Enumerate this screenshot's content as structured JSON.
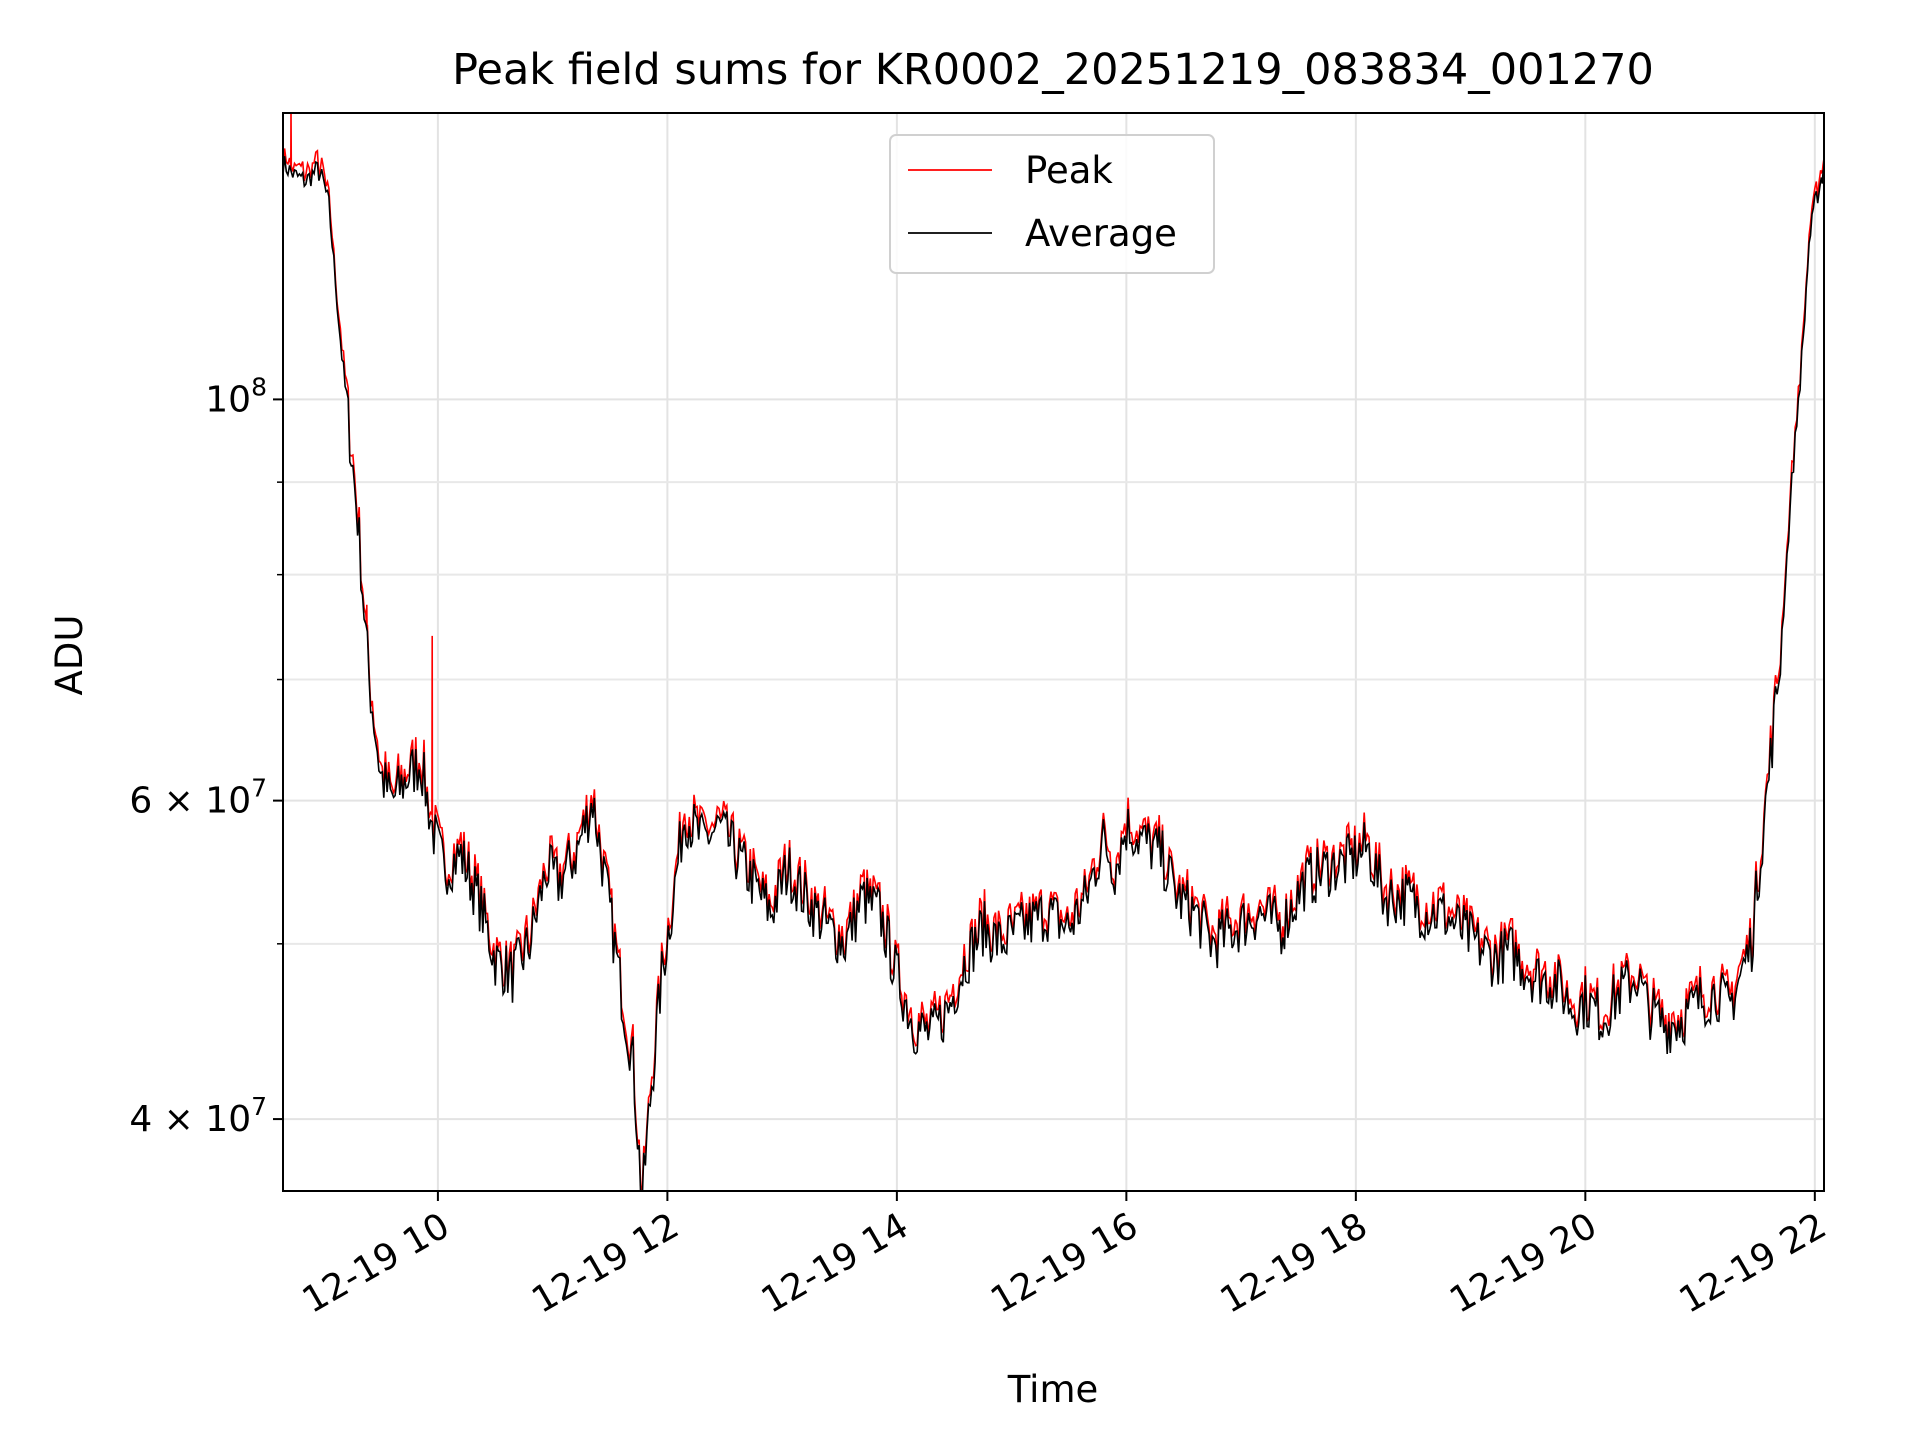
{
  "chart_data": {
    "type": "line",
    "title": "Peak field sums for KR0002_20251219_083834_001270",
    "xlabel": "Time",
    "ylabel": "ADU",
    "yscale": "log",
    "ylim": [
      36500000,
      144000000
    ],
    "xlim_hours": [
      8.65,
      22.08
    ],
    "grid": true,
    "legend_position": "upper center",
    "x_ticks": [
      {
        "hour": 10,
        "label": "12-19 10"
      },
      {
        "hour": 12,
        "label": "12-19 12"
      },
      {
        "hour": 14,
        "label": "12-19 14"
      },
      {
        "hour": 16,
        "label": "12-19 16"
      },
      {
        "hour": 18,
        "label": "12-19 18"
      },
      {
        "hour": 20,
        "label": "12-19 20"
      },
      {
        "hour": 22,
        "label": "12-19 22"
      }
    ],
    "y_major_ticks": [
      {
        "value": 100000000,
        "base": "10",
        "exp": "8"
      },
      {
        "value": 60000000,
        "base": "6 × 10",
        "exp": "7"
      },
      {
        "value": 40000000,
        "base": "4 × 10",
        "exp": "7"
      }
    ],
    "y_minor_ticks": [
      50000000,
      70000000,
      80000000,
      90000000
    ],
    "series": [
      {
        "name": "Peak",
        "color": "#ff0000",
        "spikes": [
          {
            "hour": 8.72,
            "value": 145000000
          },
          {
            "hour": 9.38,
            "value": 77000000
          },
          {
            "hour": 9.95,
            "value": 74000000
          }
        ]
      },
      {
        "name": "Average",
        "color": "#000000",
        "x_hours": [
          8.65,
          8.75,
          8.85,
          8.95,
          9.0,
          9.05,
          9.15,
          9.3,
          9.4,
          9.5,
          9.6,
          9.75,
          9.85,
          9.95,
          10.05,
          10.2,
          10.35,
          10.5,
          10.65,
          10.8,
          10.95,
          11.05,
          11.2,
          11.35,
          11.5,
          11.6,
          11.7,
          11.78,
          11.85,
          11.95,
          12.05,
          12.15,
          12.3,
          12.45,
          12.6,
          12.75,
          12.9,
          13.05,
          13.2,
          13.4,
          13.55,
          13.7,
          13.85,
          14.0,
          14.15,
          14.3,
          14.45,
          14.6,
          14.75,
          14.9,
          15.1,
          15.3,
          15.5,
          15.65,
          15.8,
          15.9,
          16.0,
          16.15,
          16.3,
          16.45,
          16.6,
          16.75,
          16.95,
          17.15,
          17.35,
          17.55,
          17.75,
          17.95,
          18.1,
          18.25,
          18.45,
          18.6,
          18.75,
          18.9,
          19.05,
          19.2,
          19.35,
          19.55,
          19.75,
          19.9,
          20.0,
          20.15,
          20.3,
          20.45,
          20.55,
          20.7,
          20.85,
          21.0,
          21.15,
          21.25,
          21.35,
          21.45,
          21.5,
          21.6,
          21.7,
          21.8,
          21.9,
          21.95,
          22.0,
          22.05,
          22.08
        ],
        "values": [
          135000000,
          133000000,
          132000000,
          134000000,
          132000000,
          128000000,
          108000000,
          86000000,
          70000000,
          62000000,
          60000000,
          62000000,
          63000000,
          58000000,
          55000000,
          56000000,
          53000000,
          49000000,
          48000000,
          50000000,
          55000000,
          54000000,
          56000000,
          60000000,
          52000000,
          47000000,
          43000000,
          36000000,
          41000000,
          48000000,
          53000000,
          59000000,
          57000000,
          58000000,
          56000000,
          54000000,
          52000000,
          55000000,
          53000000,
          51000000,
          50000000,
          53000000,
          52000000,
          48000000,
          45000000,
          44500000,
          46000000,
          49000000,
          51000000,
          50000000,
          51000000,
          52000000,
          51000000,
          53000000,
          57000000,
          55000000,
          58000000,
          57000000,
          56000000,
          53000000,
          52000000,
          50000000,
          51000000,
          52000000,
          51000000,
          54000000,
          55000000,
          55500000,
          56500000,
          53000000,
          53000000,
          52000000,
          52000000,
          51000000,
          50000000,
          49000000,
          49500000,
          48000000,
          47500000,
          46000000,
          46500000,
          45500000,
          47000000,
          48000000,
          46000000,
          45000000,
          45500000,
          46500000,
          47000000,
          46000000,
          48000000,
          50000000,
          54000000,
          62000000,
          72000000,
          90000000,
          108000000,
          122000000,
          128000000,
          132000000,
          134000000
        ]
      }
    ]
  }
}
